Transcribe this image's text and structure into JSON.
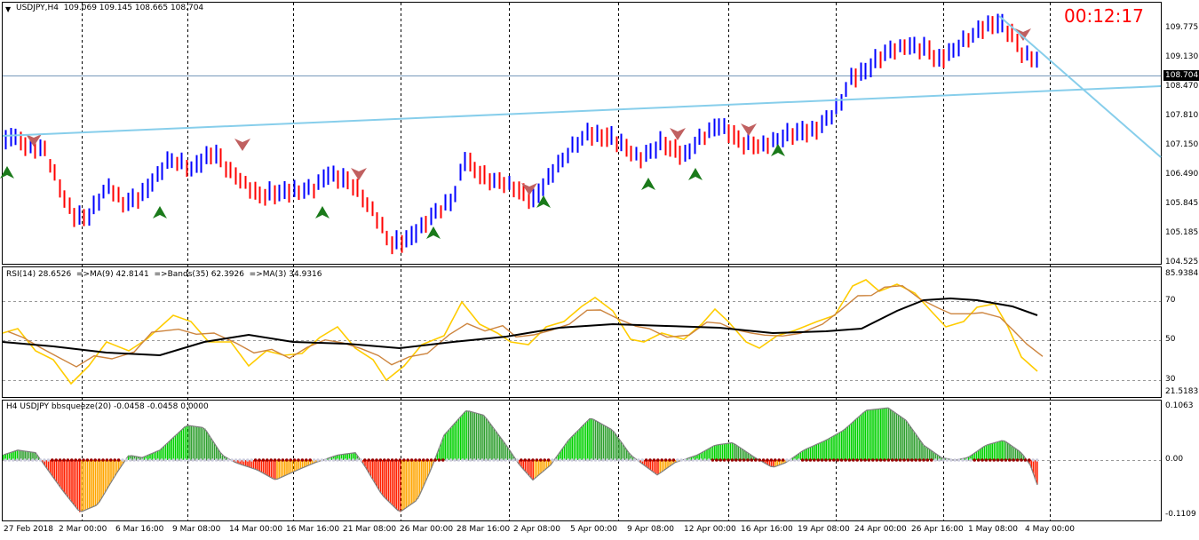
{
  "colors": {
    "bull": "#0000ff",
    "bear": "#ff0000",
    "trendline": "#87ceeb",
    "rsi": "#ffcc00",
    "rsi_ma": "#cd853f",
    "rsi_bands": "#000000",
    "squeeze_pos": "#00c000",
    "squeeze_neg": "#ff2000",
    "timer": "#ff0000"
  },
  "main": {
    "title": "USDJPY,H4",
    "ohlc": "109.069 109.145 108.665 108.704",
    "timer": "00:12:17",
    "current_price": "108.704",
    "price_ticks": [
      "109.775",
      "109.130",
      "108.470",
      "107.810",
      "107.150",
      "106.490",
      "105.845",
      "105.185",
      "104.525"
    ]
  },
  "rsi_pane": {
    "title": "RSI(14) 28.6526",
    "ma9": "=>MA(9) 42.8141",
    "bands": "=>Bands(35) 62.3926",
    "ma3": "=>MA(3) 34.9316",
    "ticks": [
      "85.9384",
      "70",
      "50",
      "30",
      "21.5183"
    ]
  },
  "squeeze_pane": {
    "title": "H4 USDJPY bbsqueeze(20) -0.0458 -0.0458 0.0000",
    "ticks": [
      "0.1063",
      "0.00",
      "-0.1109"
    ]
  },
  "time_axis": [
    "27 Feb 2018",
    "2 Mar 00:00",
    "6 Mar 16:00",
    "9 Mar 08:00",
    "14 Mar 00:00",
    "16 Mar 16:00",
    "21 Mar 08:00",
    "26 Mar 00:00",
    "28 Mar 16:00",
    "2 Apr 08:00",
    "5 Apr 00:00",
    "9 Apr 08:00",
    "12 Apr 00:00",
    "16 Apr 16:00",
    "19 Apr 08:00",
    "24 Apr 00:00",
    "26 Apr 16:00",
    "1 May 08:00",
    "4 May 00:00"
  ]
}
